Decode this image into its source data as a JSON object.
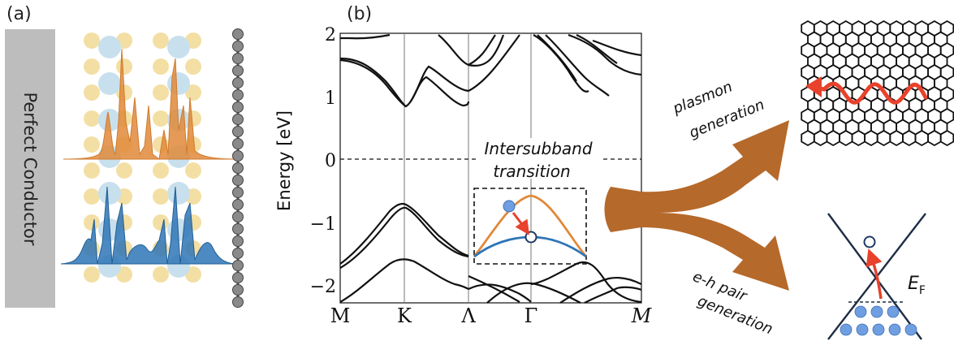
{
  "panel_a": {
    "label": "(a)",
    "conductor_label": "Perfect Conductor"
  },
  "panel_b": {
    "label": "(b)",
    "ylabel": "Energy [eV]",
    "y_ticks": [
      "2",
      "1",
      "0",
      "−1",
      "−2"
    ],
    "x_ticks": [
      "M",
      "K",
      "Λ",
      "Γ",
      "M"
    ],
    "annotation_line1": "Intersubband",
    "annotation_line2": "transition"
  },
  "right": {
    "plasmon_line1": "plasmon",
    "plasmon_line2": "generation",
    "eh_line1": "e-h pair",
    "eh_line2": "generation",
    "fermi_label": "E",
    "fermi_sub": "F"
  },
  "colors": {
    "orange": "#e0893a",
    "blue": "#2e75b6",
    "arrow_brown": "#b5692a",
    "red": "#e8412c",
    "conductor_gray": "#bdbdbd"
  }
}
